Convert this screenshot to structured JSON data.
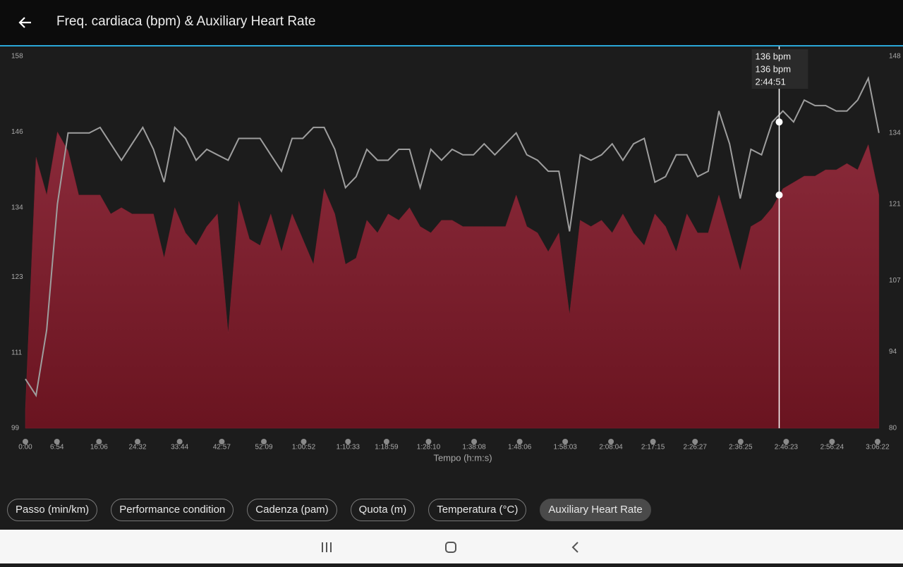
{
  "header": {
    "title": "Freq. cardiaca (bpm) & Auxiliary Heart Rate"
  },
  "chart_data": {
    "type": "area",
    "x_label": "Tempo (h:m:s)",
    "xlim": [
      0,
      11275
    ],
    "xticks": [
      {
        "value": 0,
        "label": "0:00"
      },
      {
        "value": 414,
        "label": "6:54"
      },
      {
        "value": 966,
        "label": "16:06"
      },
      {
        "value": 1472,
        "label": "24:32"
      },
      {
        "value": 2024,
        "label": "33:44"
      },
      {
        "value": 2577,
        "label": "42:57"
      },
      {
        "value": 3129,
        "label": "52:09"
      },
      {
        "value": 3652,
        "label": "1:00:52"
      },
      {
        "value": 4233,
        "label": "1:10:33"
      },
      {
        "value": 4739,
        "label": "1:18:59"
      },
      {
        "value": 5290,
        "label": "1:28:10"
      },
      {
        "value": 5888,
        "label": "1:38:08"
      },
      {
        "value": 6486,
        "label": "1:48:06"
      },
      {
        "value": 7083,
        "label": "1:58:03"
      },
      {
        "value": 7684,
        "label": "2:08:04"
      },
      {
        "value": 8235,
        "label": "2:17:15"
      },
      {
        "value": 8787,
        "label": "2:26:27"
      },
      {
        "value": 9385,
        "label": "2:36:25"
      },
      {
        "value": 9983,
        "label": "2:46:23"
      },
      {
        "value": 10584,
        "label": "2:56:24"
      },
      {
        "value": 11182,
        "label": "3:06:22"
      }
    ],
    "ylim": [
      99,
      158
    ],
    "yticks": [
      99,
      111,
      123,
      134,
      146,
      158
    ],
    "y2lim": [
      80,
      148
    ],
    "y2ticks": [
      80,
      94,
      107,
      121,
      134,
      148
    ],
    "x": [
      0,
      140,
      280,
      420,
      560,
      700,
      840,
      980,
      1120,
      1260,
      1400,
      1540,
      1680,
      1820,
      1960,
      2100,
      2240,
      2380,
      2520,
      2660,
      2800,
      2940,
      3080,
      3220,
      3360,
      3500,
      3640,
      3780,
      3920,
      4060,
      4200,
      4340,
      4480,
      4620,
      4760,
      4900,
      5040,
      5180,
      5320,
      5460,
      5600,
      5740,
      5880,
      6020,
      6160,
      6300,
      6440,
      6580,
      6720,
      6860,
      7000,
      7140,
      7280,
      7420,
      7560,
      7700,
      7840,
      7980,
      8120,
      8260,
      8400,
      8540,
      8680,
      8820,
      8960,
      9100,
      9240,
      9380,
      9520,
      9660,
      9800,
      9940,
      10080,
      10220,
      10360,
      10500,
      10640,
      10780,
      10920,
      11060,
      11200
    ],
    "series": [
      {
        "style": "area",
        "color": "#7a1f2d",
        "values": [
          102,
          142,
          136,
          146,
          143,
          136,
          136,
          136,
          133,
          134,
          133,
          133,
          133,
          126,
          134,
          130,
          128,
          131,
          133,
          114,
          135,
          129,
          128,
          133,
          127,
          133,
          129,
          125,
          137,
          133,
          125,
          126,
          132,
          130,
          133,
          132,
          134,
          131,
          130,
          132,
          132,
          131,
          131,
          131,
          131,
          131,
          136,
          131,
          130,
          127,
          130,
          117,
          132,
          131,
          132,
          130,
          133,
          130,
          128,
          133,
          131,
          127,
          133,
          130,
          130,
          136,
          130,
          124,
          131,
          132,
          134,
          137,
          138,
          139,
          139,
          140,
          140,
          141,
          140,
          144,
          136
        ]
      },
      {
        "style": "line",
        "axis": "y2",
        "color": "#9e9e9e",
        "values": [
          89,
          86,
          98,
          121,
          134,
          134,
          134,
          135,
          132,
          129,
          132,
          135,
          131,
          125,
          135,
          133,
          129,
          131,
          130,
          129,
          133,
          133,
          133,
          130,
          127,
          133,
          133,
          135,
          135,
          131,
          124,
          126,
          131,
          129,
          129,
          131,
          131,
          124,
          131,
          129,
          131,
          130,
          130,
          132,
          130,
          132,
          134,
          130,
          129,
          127,
          127,
          116,
          130,
          129,
          130,
          132,
          129,
          132,
          133,
          125,
          126,
          130,
          130,
          126,
          127,
          138,
          132,
          122,
          131,
          130,
          136,
          138,
          136,
          140,
          139,
          139,
          138,
          138,
          140,
          144,
          134
        ]
      }
    ],
    "cursor": {
      "x": 9891,
      "label": "2:44:51",
      "values": [
        136,
        136
      ],
      "value_labels": [
        "136 bpm",
        "136 bpm"
      ]
    }
  },
  "chips": [
    "Passo (min/km)",
    "Performance condition",
    "Cadenza (pam)",
    "Quota (m)",
    "Temperatura (°C)",
    "Auxiliary Heart Rate"
  ],
  "active_chip": 5
}
